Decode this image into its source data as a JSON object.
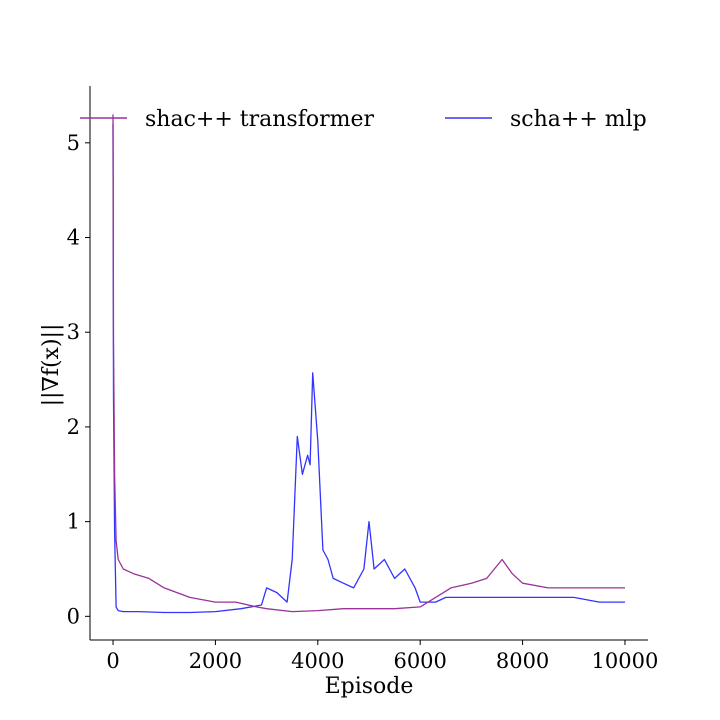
{
  "chart_data": {
    "type": "line",
    "title": "",
    "xlabel": "Episode",
    "ylabel": "||∇f(x)||",
    "xlim": [
      -450,
      10450
    ],
    "ylim": [
      -0.25,
      5.6
    ],
    "xticks": [
      0,
      2000,
      4000,
      6000,
      8000,
      10000
    ],
    "yticks": [
      0,
      1,
      2,
      3,
      4,
      5
    ],
    "grid": false,
    "legend_position": "top",
    "series": [
      {
        "name": "scha++ mlp",
        "color": "#3333ff",
        "x": [
          0,
          10,
          30,
          60,
          100,
          200,
          500,
          1000,
          1500,
          2000,
          2500,
          2900,
          3000,
          3200,
          3400,
          3500,
          3600,
          3700,
          3800,
          3850,
          3900,
          4000,
          4100,
          4200,
          4300,
          4500,
          4700,
          4900,
          5000,
          5100,
          5300,
          5500,
          5700,
          5900,
          6000,
          6300,
          6500,
          7000,
          7100,
          7500,
          8000,
          8300,
          8500,
          8700,
          9000,
          9500,
          10000
        ],
        "y": [
          5.2,
          2.3,
          0.9,
          0.1,
          0.06,
          0.05,
          0.05,
          0.04,
          0.04,
          0.05,
          0.08,
          0.12,
          0.3,
          0.25,
          0.15,
          0.6,
          1.9,
          1.5,
          1.7,
          1.6,
          2.57,
          1.85,
          0.7,
          0.6,
          0.4,
          0.35,
          0.3,
          0.5,
          1.0,
          0.5,
          0.6,
          0.4,
          0.5,
          0.3,
          0.15,
          0.15,
          0.2,
          0.2,
          0.2,
          0.2,
          0.2,
          0.2,
          0.2,
          0.2,
          0.2,
          0.15,
          0.15
        ]
      },
      {
        "name": "shac++ transformer",
        "color": "#993399",
        "x": [
          0,
          10,
          30,
          60,
          100,
          200,
          400,
          700,
          1000,
          1500,
          2000,
          2400,
          2800,
          3000,
          3500,
          4000,
          4500,
          5000,
          5500,
          6000,
          6300,
          6600,
          7000,
          7300,
          7600,
          7800,
          8000,
          8500,
          9000,
          9500,
          10000
        ],
        "y": [
          5.3,
          2.9,
          1.5,
          0.8,
          0.6,
          0.5,
          0.45,
          0.4,
          0.3,
          0.2,
          0.15,
          0.15,
          0.1,
          0.08,
          0.05,
          0.06,
          0.08,
          0.08,
          0.08,
          0.1,
          0.2,
          0.3,
          0.35,
          0.4,
          0.6,
          0.45,
          0.35,
          0.3,
          0.3,
          0.3,
          0.3
        ]
      }
    ]
  }
}
